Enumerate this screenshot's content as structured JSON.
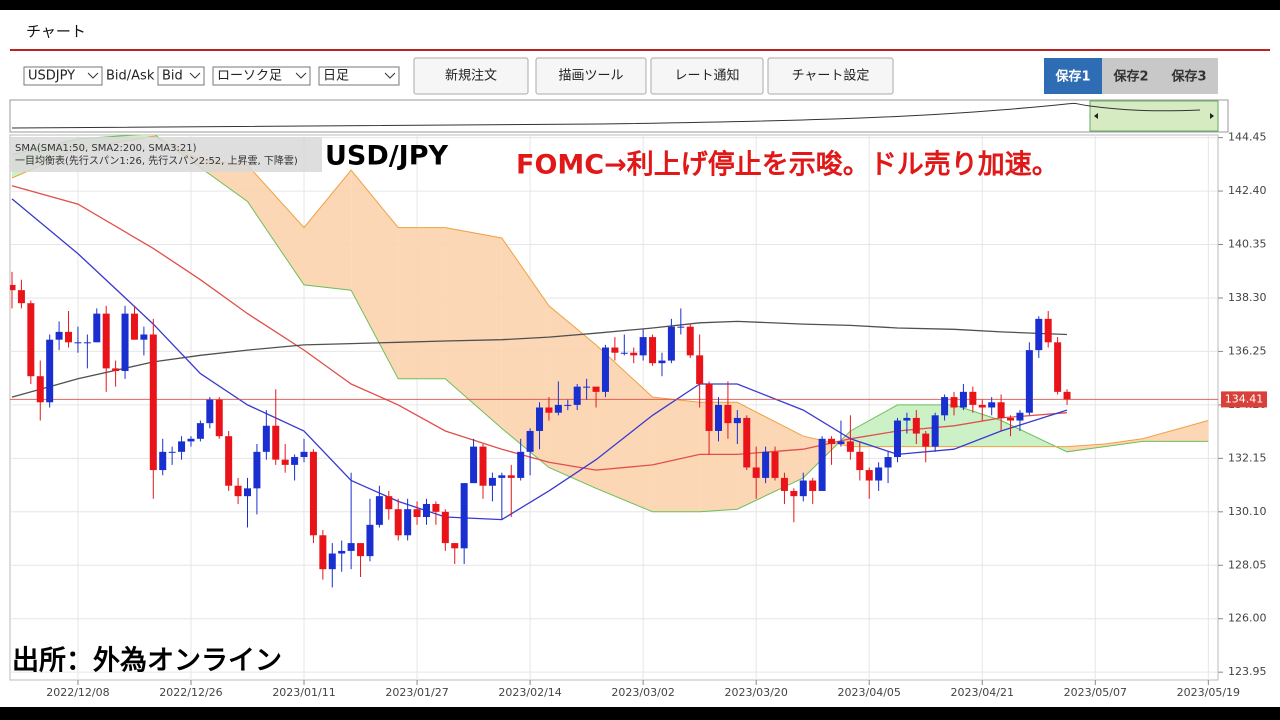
{
  "header": {
    "title": "チャート"
  },
  "toolbar": {
    "symbol": "USDJPY",
    "side_label": "Bid/Ask",
    "side": "Bid",
    "chart_style": "ローソク足",
    "period": "日足",
    "buttons": [
      "新規注文",
      "描画ツール",
      "レート通知",
      "チャート設定"
    ],
    "saves": [
      "保存1",
      "保存2",
      "保存3"
    ]
  },
  "chart_data": {
    "type": "candlestick",
    "title": "USD/JPY",
    "annotation": "FOMC→利上げ停止を示唆。ドル売り加速。",
    "source": "出所：外為オンライン",
    "legend_lines": [
      "SMA(SMA1:50, SMA2:200, SMA3:21)",
      "一目均衡表(先行スパン1:26, 先行スパン2:52, 上昇雲, 下降雲)"
    ],
    "ylim": [
      123.65,
      144.55
    ],
    "yticks": [
      123.95,
      {
        "value": 126,
        "label": "126.00"
      },
      128.05,
      {
        "value": 130.1,
        "label": "130.10"
      },
      132.15,
      {
        "value": 134.2,
        "label": "134.20"
      },
      136.25,
      {
        "value": 138.3,
        "label": "138.30"
      },
      140.35,
      {
        "value": 142.4,
        "label": "142.40"
      },
      144.45
    ],
    "xticks": [
      "2022/12/08",
      "2022/12/26",
      "2023/01/11",
      "2023/01/27",
      "2023/02/14",
      "2023/03/02",
      "2023/03/20",
      "2023/04/05",
      "2023/04/21",
      "2023/05/07",
      "2023/05/19"
    ],
    "grid": true,
    "last_price": 134.41,
    "up_color": "#1a2fd0",
    "down_color": "#e8141a",
    "last_price_color": "#d9403a",
    "candles": {
      "x": [
        "2022/11/29",
        "2022/11/30",
        "2022/12/01",
        "2022/12/02",
        "2022/12/05",
        "2022/12/06",
        "2022/12/07",
        "2022/12/08",
        "2022/12/09",
        "2022/12/12",
        "2022/12/13",
        "2022/12/14",
        "2022/12/15",
        "2022/12/16",
        "2022/12/19",
        "2022/12/20",
        "2022/12/21",
        "2022/12/22",
        "2022/12/23",
        "2022/12/26",
        "2022/12/27",
        "2022/12/28",
        "2022/12/29",
        "2022/12/30",
        "2023/01/02",
        "2023/01/03",
        "2023/01/04",
        "2023/01/05",
        "2023/01/06",
        "2023/01/09",
        "2023/01/10",
        "2023/01/11",
        "2023/01/12",
        "2023/01/13",
        "2023/01/16",
        "2023/01/17",
        "2023/01/18",
        "2023/01/19",
        "2023/01/20",
        "2023/01/23",
        "2023/01/24",
        "2023/01/25",
        "2023/01/26",
        "2023/01/27",
        "2023/01/30",
        "2023/01/31",
        "2023/02/01",
        "2023/02/02",
        "2023/02/03",
        "2023/02/06",
        "2023/02/07",
        "2023/02/08",
        "2023/02/09",
        "2023/02/10",
        "2023/02/13",
        "2023/02/14",
        "2023/02/15",
        "2023/02/16",
        "2023/02/17",
        "2023/02/20",
        "2023/02/21",
        "2023/02/22",
        "2023/02/23",
        "2023/02/24",
        "2023/02/27",
        "2023/02/28",
        "2023/03/01",
        "2023/03/02",
        "2023/03/03",
        "2023/03/06",
        "2023/03/07",
        "2023/03/08",
        "2023/03/09",
        "2023/03/10",
        "2023/03/13",
        "2023/03/14",
        "2023/03/15",
        "2023/03/16",
        "2023/03/17",
        "2023/03/20",
        "2023/03/21",
        "2023/03/22",
        "2023/03/23",
        "2023/03/24",
        "2023/03/27",
        "2023/03/28",
        "2023/03/29",
        "2023/03/30",
        "2023/03/31",
        "2023/04/03",
        "2023/04/04",
        "2023/04/05",
        "2023/04/06",
        "2023/04/07",
        "2023/04/10",
        "2023/04/11",
        "2023/04/12",
        "2023/04/13",
        "2023/04/14",
        "2023/04/17",
        "2023/04/18",
        "2023/04/19",
        "2023/04/20",
        "2023/04/21",
        "2023/04/24",
        "2023/04/25",
        "2023/04/26",
        "2023/04/27",
        "2023/04/28",
        "2023/05/01",
        "2023/05/02",
        "2023/05/03",
        "2023/05/04"
      ],
      "open": [
        138.8,
        138.6,
        138.1,
        135.3,
        134.3,
        136.7,
        137.0,
        136.6,
        136.6,
        136.6,
        137.7,
        135.6,
        135.5,
        137.7,
        136.7,
        136.9,
        131.7,
        132.4,
        132.4,
        132.8,
        132.9,
        133.5,
        134.4,
        133.0,
        131.1,
        130.7,
        131.0,
        132.4,
        133.4,
        132.1,
        131.9,
        132.2,
        132.4,
        129.2,
        127.9,
        128.5,
        128.6,
        128.9,
        128.4,
        129.6,
        130.7,
        130.2,
        129.2,
        130.2,
        129.9,
        130.4,
        130.1,
        128.9,
        128.7,
        131.2,
        132.6,
        131.1,
        131.4,
        131.5,
        131.4,
        132.4,
        133.2,
        134.1,
        133.9,
        134.2,
        134.2,
        134.9,
        134.9,
        134.7,
        136.4,
        136.2,
        136.2,
        136.1,
        136.8,
        135.8,
        135.9,
        137.2,
        137.2,
        136.1,
        135.0,
        133.2,
        134.2,
        133.5,
        133.7,
        131.8,
        131.4,
        132.4,
        131.4,
        130.9,
        130.7,
        131.3,
        130.9,
        132.9,
        132.7,
        132.8,
        132.4,
        131.7,
        131.3,
        131.8,
        132.2,
        133.6,
        133.7,
        133.1,
        132.6,
        133.8,
        134.5,
        134.1,
        134.7,
        134.2,
        134.1,
        134.3,
        133.7,
        133.6,
        133.9,
        136.3,
        137.5,
        136.6,
        134.7
      ],
      "high": [
        139.3,
        139.0,
        138.2,
        135.9,
        136.9,
        137.4,
        137.8,
        137.2,
        136.9,
        137.9,
        138.0,
        135.9,
        138.0,
        138.0,
        137.2,
        137.5,
        132.9,
        132.6,
        133.0,
        133.0,
        133.6,
        134.5,
        134.5,
        133.2,
        131.4,
        131.4,
        132.7,
        134.0,
        134.8,
        132.7,
        132.3,
        132.9,
        132.5,
        129.4,
        128.9,
        129.0,
        131.6,
        128.9,
        130.6,
        131.1,
        130.9,
        130.6,
        130.6,
        130.5,
        130.6,
        130.5,
        130.2,
        128.9,
        131.2,
        132.9,
        132.7,
        131.6,
        131.6,
        131.9,
        132.9,
        133.3,
        134.3,
        134.5,
        135.1,
        134.4,
        135.0,
        135.2,
        134.9,
        136.5,
        136.8,
        136.9,
        136.4,
        137.1,
        136.9,
        136.2,
        137.5,
        137.9,
        137.3,
        136.9,
        135.1,
        134.5,
        135.1,
        134.0,
        133.8,
        132.6,
        132.6,
        132.6,
        131.6,
        131.0,
        131.6,
        131.4,
        133.0,
        133.0,
        133.6,
        133.8,
        132.8,
        131.8,
        132.0,
        132.4,
        133.7,
        133.9,
        134.0,
        133.2,
        133.9,
        134.6,
        134.7,
        135.0,
        134.9,
        134.4,
        134.5,
        134.6,
        133.8,
        134.0,
        136.6,
        137.6,
        137.8,
        136.8,
        134.8
      ],
      "low": [
        137.9,
        137.9,
        135.0,
        133.6,
        134.1,
        136.3,
        136.4,
        136.2,
        135.6,
        136.6,
        134.7,
        134.9,
        135.2,
        136.7,
        136.1,
        130.6,
        131.5,
        131.9,
        132.1,
        132.6,
        132.8,
        133.3,
        132.9,
        130.9,
        130.4,
        129.5,
        130.0,
        132.1,
        131.9,
        131.6,
        131.3,
        132.0,
        128.9,
        127.5,
        127.2,
        127.8,
        127.9,
        127.6,
        128.2,
        129.5,
        129.8,
        129.0,
        129.0,
        129.6,
        129.6,
        129.6,
        128.6,
        128.1,
        128.1,
        131.2,
        130.6,
        130.5,
        129.8,
        129.9,
        131.3,
        131.5,
        132.5,
        133.6,
        133.8,
        134.0,
        134.0,
        134.4,
        134.1,
        134.5,
        135.9,
        136.1,
        135.8,
        135.9,
        135.7,
        135.3,
        135.8,
        136.9,
        136.0,
        134.1,
        132.3,
        132.8,
        132.9,
        132.7,
        131.7,
        130.6,
        131.2,
        131.3,
        130.4,
        129.7,
        130.5,
        130.4,
        130.9,
        131.9,
        132.6,
        132.1,
        131.3,
        130.6,
        130.9,
        131.2,
        132.0,
        133.1,
        132.7,
        132.0,
        132.4,
        133.6,
        133.8,
        134.0,
        133.9,
        133.6,
        133.8,
        133.2,
        133.0,
        133.2,
        133.8,
        136.0,
        136.4,
        134.6,
        134.2
      ],
      "close": [
        138.6,
        138.1,
        135.3,
        134.3,
        136.7,
        137.0,
        136.6,
        136.6,
        136.6,
        137.7,
        135.6,
        135.5,
        137.7,
        136.7,
        136.9,
        131.7,
        132.4,
        132.4,
        132.8,
        132.9,
        133.5,
        134.4,
        133.0,
        131.1,
        130.7,
        131.0,
        132.4,
        133.4,
        132.1,
        131.9,
        132.2,
        132.4,
        129.2,
        127.9,
        128.5,
        128.6,
        128.9,
        128.4,
        129.6,
        130.7,
        130.2,
        129.2,
        130.2,
        129.9,
        130.4,
        130.1,
        128.9,
        128.7,
        131.2,
        132.6,
        131.1,
        131.4,
        131.5,
        131.4,
        132.4,
        133.2,
        134.1,
        133.9,
        134.2,
        134.2,
        134.9,
        134.9,
        134.7,
        136.4,
        136.2,
        136.2,
        136.1,
        136.8,
        135.8,
        135.9,
        137.2,
        137.2,
        136.1,
        135.0,
        133.2,
        134.2,
        133.5,
        133.7,
        131.8,
        131.4,
        132.4,
        131.4,
        130.9,
        130.7,
        131.3,
        130.9,
        132.9,
        132.7,
        132.8,
        132.4,
        131.7,
        131.3,
        131.8,
        132.2,
        133.6,
        133.7,
        133.1,
        132.6,
        133.8,
        134.5,
        134.1,
        134.7,
        134.2,
        134.1,
        134.3,
        133.7,
        133.6,
        133.9,
        136.3,
        137.5,
        136.6,
        134.7,
        134.41
      ]
    },
    "sma": {
      "x": [
        "2022/11/29",
        "2022/12/08",
        "2022/12/20",
        "2022/12/27",
        "2023/01/03",
        "2023/01/11",
        "2023/01/18",
        "2023/01/25",
        "2023/02/01",
        "2023/02/09",
        "2023/02/16",
        "2023/02/23",
        "2023/03/03",
        "2023/03/10",
        "2023/03/16",
        "2023/03/27",
        "2023/04/03",
        "2023/04/10",
        "2023/04/18",
        "2023/04/25",
        "2023/05/04"
      ],
      "series": [
        {
          "color": "#e0504a",
          "values": [
            142.6,
            141.9,
            140.2,
            139.0,
            137.7,
            136.3,
            135.0,
            134.2,
            133.2,
            132.5,
            132.0,
            131.7,
            131.9,
            132.3,
            132.3,
            132.5,
            132.9,
            133.2,
            133.4,
            133.7,
            133.9
          ]
        },
        {
          "color": "#505050",
          "values": [
            134.5,
            135.2,
            135.85,
            136.1,
            136.3,
            136.5,
            136.55,
            136.6,
            136.65,
            136.7,
            136.8,
            136.95,
            137.15,
            137.35,
            137.4,
            137.3,
            137.25,
            137.15,
            137.1,
            137.0,
            136.9
          ]
        },
        {
          "color": "#3a3ad0",
          "values": [
            142.1,
            140.0,
            137.3,
            135.4,
            134.2,
            133.2,
            131.3,
            130.5,
            129.9,
            129.8,
            130.9,
            132.1,
            133.8,
            135.0,
            135.0,
            134.0,
            132.9,
            132.3,
            132.5,
            133.2,
            134.0
          ]
        }
      ]
    },
    "cloud": {
      "x": [
        "2022/11/29",
        "2022/12/08",
        "2022/12/20",
        "2022/12/27",
        "2023/01/03",
        "2023/01/11",
        "2023/01/18",
        "2023/01/25",
        "2023/02/01",
        "2023/02/09",
        "2023/02/16",
        "2023/02/23",
        "2023/03/03",
        "2023/03/10",
        "2023/03/16",
        "2023/03/27",
        "2023/04/03",
        "2023/04/10",
        "2023/04/18",
        "2023/04/25",
        "2023/05/04",
        "2023/05/08",
        "2023/05/12",
        "2023/05/19"
      ],
      "span1": {
        "color": "#6cbf5a",
        "values": [
          143.8,
          144.4,
          144.6,
          143.3,
          142.0,
          138.8,
          138.6,
          135.2,
          135.2,
          133.3,
          131.8,
          131.0,
          130.1,
          130.1,
          130.2,
          131.4,
          133.2,
          134.2,
          134.2,
          133.6,
          132.4,
          132.6,
          132.8,
          132.8
        ]
      },
      "span2": {
        "color": "#f0a040",
        "values": [
          142.9,
          144.0,
          144.5,
          143.6,
          143.4,
          141.0,
          143.2,
          141.0,
          141.0,
          140.6,
          138.0,
          136.5,
          134.5,
          134.3,
          134.3,
          133.0,
          132.6,
          132.6,
          132.6,
          132.6,
          132.6,
          132.7,
          132.9,
          133.6
        ]
      },
      "up_fill": "#c8efc0",
      "down_fill": "#fbd3ad"
    }
  }
}
